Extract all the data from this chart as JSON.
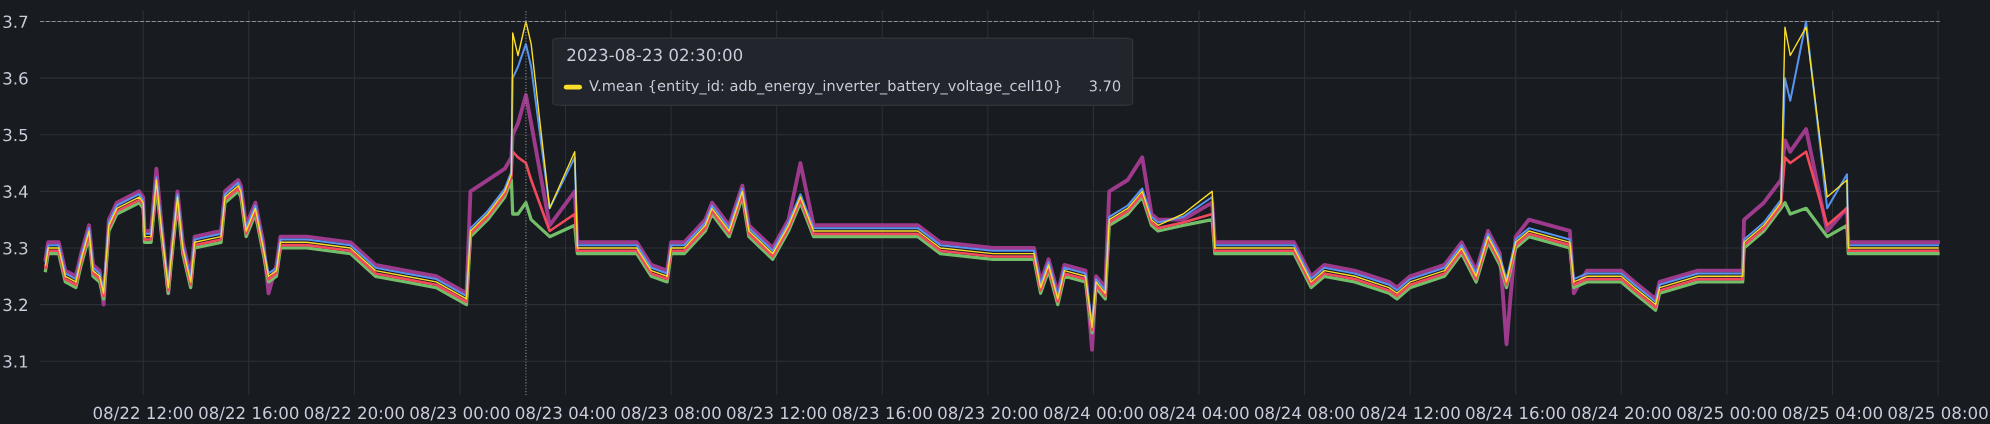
{
  "chart_data": {
    "type": "line",
    "x": [
      "2023-08-22T08:18",
      "2023-08-22T08:24",
      "2023-08-22T08:48",
      "2023-08-22T09:03",
      "2023-08-22T09:27",
      "2023-08-22T09:39",
      "2023-08-22T09:57",
      "2023-08-22T10:06",
      "2023-08-22T10:21",
      "2023-08-22T10:30",
      "2023-08-22T10:42",
      "2023-08-22T11:00",
      "2023-08-22T11:51",
      "2023-08-22T12:00",
      "2023-08-22T12:03",
      "2023-08-22T12:18",
      "2023-08-22T12:30",
      "2023-08-22T12:42",
      "2023-08-22T12:57",
      "2023-08-22T13:06",
      "2023-08-22T13:18",
      "2023-08-22T13:30",
      "2023-08-22T13:48",
      "2023-08-22T13:57",
      "2023-08-22T14:57",
      "2023-08-22T15:06",
      "2023-08-22T15:36",
      "2023-08-22T15:42",
      "2023-08-22T15:54",
      "2023-08-22T16:15",
      "2023-08-22T16:33",
      "2023-08-22T16:45",
      "2023-08-22T17:03",
      "2023-08-22T17:12",
      "2023-08-22T18:12",
      "2023-08-22T19:51",
      "2023-08-22T20:48",
      "2023-08-22T21:57",
      "2023-08-22T23:06",
      "2023-08-23T00:15",
      "2023-08-23T00:24",
      "2023-08-23T01:03",
      "2023-08-23T01:42",
      "2023-08-23T01:57",
      "2023-08-23T02:00",
      "2023-08-23T02:12",
      "2023-08-23T02:30",
      "2023-08-23T02:42",
      "2023-08-23T03:24",
      "2023-08-23T04:21",
      "2023-08-23T04:27",
      "2023-08-23T06:42",
      "2023-08-23T07:15",
      "2023-08-23T07:51",
      "2023-08-23T08:00",
      "2023-08-23T08:30",
      "2023-08-23T09:18",
      "2023-08-23T09:33",
      "2023-08-23T10:12",
      "2023-08-23T10:42",
      "2023-08-23T10:57",
      "2023-08-23T11:51",
      "2023-08-23T12:27",
      "2023-08-23T12:54",
      "2023-08-23T13:24",
      "2023-08-23T14:33",
      "2023-08-23T15:36",
      "2023-08-23T17:21",
      "2023-08-23T18:12",
      "2023-08-23T20:12",
      "2023-08-23T21:45",
      "2023-08-23T22:00",
      "2023-08-23T22:18",
      "2023-08-23T22:39",
      "2023-08-23T22:54",
      "2023-08-23T23:42",
      "2023-08-23T23:57",
      "2023-08-24T00:06",
      "2023-08-24T00:27",
      "2023-08-24T00:36",
      "2023-08-24T01:18",
      "2023-08-24T01:51",
      "2023-08-24T02:12",
      "2023-08-24T02:27",
      "2023-08-24T03:24",
      "2023-08-24T04:30",
      "2023-08-24T04:36",
      "2023-08-24T06:36",
      "2023-08-24T07:36",
      "2023-08-24T08:15",
      "2023-08-24T08:45",
      "2023-08-24T09:54",
      "2023-08-24T11:12",
      "2023-08-24T11:30",
      "2023-08-24T12:00",
      "2023-08-24T13:18",
      "2023-08-24T13:57",
      "2023-08-24T14:30",
      "2023-08-24T14:57",
      "2023-08-24T15:24",
      "2023-08-24T15:39",
      "2023-08-24T16:00",
      "2023-08-24T16:30",
      "2023-08-24T18:03",
      "2023-08-24T18:12",
      "2023-08-24T18:42",
      "2023-08-24T20:00",
      "2023-08-24T20:30",
      "2023-08-24T21:18",
      "2023-08-24T21:27",
      "2023-08-24T22:54",
      "2023-08-25T00:36",
      "2023-08-25T00:39",
      "2023-08-25T01:24",
      "2023-08-25T02:03",
      "2023-08-25T02:12",
      "2023-08-25T02:24",
      "2023-08-25T03:00",
      "2023-08-25T03:48",
      "2023-08-25T04:33",
      "2023-08-25T04:36",
      "2023-08-25T08:00"
    ],
    "series": [
      {
        "color": "#9e3a8c",
        "values": [
          3.28,
          3.31,
          3.31,
          3.26,
          3.25,
          3.29,
          3.34,
          3.27,
          3.26,
          3.2,
          3.35,
          3.38,
          3.4,
          3.39,
          3.33,
          3.33,
          3.44,
          3.34,
          3.22,
          3.31,
          3.4,
          3.31,
          3.25,
          3.32,
          3.33,
          3.4,
          3.42,
          3.41,
          3.34,
          3.38,
          3.31,
          3.22,
          3.27,
          3.32,
          3.32,
          3.31,
          3.27,
          3.26,
          3.25,
          3.22,
          3.4,
          3.42,
          3.44,
          3.46,
          3.5,
          3.52,
          3.57,
          3.52,
          3.34,
          3.4,
          3.31,
          3.31,
          3.27,
          3.26,
          3.31,
          3.31,
          3.35,
          3.38,
          3.34,
          3.41,
          3.34,
          3.3,
          3.35,
          3.45,
          3.34,
          3.34,
          3.34,
          3.34,
          3.31,
          3.3,
          3.3,
          3.24,
          3.28,
          3.22,
          3.27,
          3.26,
          3.12,
          3.25,
          3.23,
          3.4,
          3.42,
          3.46,
          3.36,
          3.35,
          3.35,
          3.38,
          3.31,
          3.31,
          3.31,
          3.25,
          3.27,
          3.26,
          3.24,
          3.23,
          3.25,
          3.27,
          3.31,
          3.26,
          3.33,
          3.29,
          3.13,
          3.32,
          3.35,
          3.33,
          3.22,
          3.26,
          3.26,
          3.24,
          3.21,
          3.24,
          3.26,
          3.26,
          3.35,
          3.38,
          3.42,
          3.49,
          3.47,
          3.51,
          3.33,
          3.37,
          3.31,
          3.31
        ]
      },
      {
        "color": "#73bf69",
        "values": [
          3.26,
          3.29,
          3.29,
          3.24,
          3.23,
          3.27,
          3.32,
          3.25,
          3.24,
          3.21,
          3.33,
          3.36,
          3.38,
          3.37,
          3.31,
          3.31,
          3.41,
          3.32,
          3.22,
          3.29,
          3.38,
          3.29,
          3.23,
          3.3,
          3.31,
          3.38,
          3.4,
          3.39,
          3.32,
          3.36,
          3.29,
          3.24,
          3.25,
          3.3,
          3.3,
          3.29,
          3.25,
          3.24,
          3.23,
          3.2,
          3.32,
          3.35,
          3.39,
          3.42,
          3.36,
          3.36,
          3.38,
          3.35,
          3.32,
          3.34,
          3.29,
          3.29,
          3.25,
          3.24,
          3.29,
          3.29,
          3.33,
          3.36,
          3.32,
          3.39,
          3.32,
          3.28,
          3.33,
          3.38,
          3.32,
          3.32,
          3.32,
          3.32,
          3.29,
          3.28,
          3.28,
          3.22,
          3.26,
          3.2,
          3.25,
          3.24,
          3.15,
          3.23,
          3.21,
          3.34,
          3.36,
          3.39,
          3.34,
          3.33,
          3.34,
          3.35,
          3.29,
          3.29,
          3.29,
          3.23,
          3.25,
          3.24,
          3.22,
          3.21,
          3.23,
          3.25,
          3.29,
          3.24,
          3.31,
          3.27,
          3.23,
          3.3,
          3.32,
          3.3,
          3.23,
          3.24,
          3.24,
          3.22,
          3.19,
          3.22,
          3.24,
          3.24,
          3.3,
          3.33,
          3.37,
          3.38,
          3.36,
          3.37,
          3.32,
          3.34,
          3.29,
          3.29
        ]
      },
      {
        "color": "#f2495c",
        "values": [
          3.265,
          3.295,
          3.295,
          3.245,
          3.235,
          3.275,
          3.325,
          3.255,
          3.245,
          3.215,
          3.335,
          3.365,
          3.385,
          3.375,
          3.315,
          3.315,
          3.415,
          3.325,
          3.225,
          3.295,
          3.385,
          3.295,
          3.235,
          3.305,
          3.315,
          3.385,
          3.405,
          3.395,
          3.325,
          3.365,
          3.295,
          3.245,
          3.255,
          3.305,
          3.305,
          3.295,
          3.255,
          3.245,
          3.235,
          3.205,
          3.325,
          3.355,
          3.395,
          3.425,
          3.47,
          3.46,
          3.45,
          3.42,
          3.33,
          3.36,
          3.295,
          3.295,
          3.255,
          3.245,
          3.295,
          3.295,
          3.335,
          3.365,
          3.325,
          3.395,
          3.325,
          3.285,
          3.335,
          3.385,
          3.325,
          3.325,
          3.325,
          3.325,
          3.295,
          3.285,
          3.285,
          3.225,
          3.265,
          3.205,
          3.255,
          3.245,
          3.155,
          3.235,
          3.215,
          3.345,
          3.365,
          3.395,
          3.345,
          3.335,
          3.345,
          3.36,
          3.295,
          3.295,
          3.295,
          3.235,
          3.255,
          3.245,
          3.225,
          3.215,
          3.235,
          3.255,
          3.295,
          3.245,
          3.315,
          3.275,
          3.235,
          3.305,
          3.325,
          3.305,
          3.235,
          3.245,
          3.245,
          3.225,
          3.195,
          3.225,
          3.245,
          3.245,
          3.305,
          3.335,
          3.375,
          3.46,
          3.45,
          3.47,
          3.34,
          3.37,
          3.295,
          3.295
        ]
      },
      {
        "color": "#5794f2",
        "values": [
          3.275,
          3.305,
          3.305,
          3.255,
          3.245,
          3.285,
          3.335,
          3.265,
          3.255,
          3.225,
          3.345,
          3.375,
          3.395,
          3.385,
          3.325,
          3.325,
          3.425,
          3.335,
          3.235,
          3.305,
          3.395,
          3.305,
          3.245,
          3.315,
          3.325,
          3.395,
          3.415,
          3.405,
          3.335,
          3.375,
          3.305,
          3.255,
          3.265,
          3.315,
          3.315,
          3.305,
          3.265,
          3.255,
          3.245,
          3.215,
          3.335,
          3.365,
          3.405,
          3.435,
          3.6,
          3.62,
          3.66,
          3.62,
          3.37,
          3.46,
          3.305,
          3.305,
          3.265,
          3.255,
          3.305,
          3.305,
          3.345,
          3.375,
          3.335,
          3.405,
          3.335,
          3.295,
          3.345,
          3.395,
          3.335,
          3.335,
          3.335,
          3.335,
          3.305,
          3.295,
          3.295,
          3.235,
          3.275,
          3.215,
          3.265,
          3.255,
          3.165,
          3.245,
          3.225,
          3.355,
          3.375,
          3.405,
          3.355,
          3.345,
          3.355,
          3.39,
          3.305,
          3.305,
          3.305,
          3.245,
          3.265,
          3.255,
          3.235,
          3.225,
          3.245,
          3.265,
          3.305,
          3.255,
          3.325,
          3.285,
          3.245,
          3.315,
          3.335,
          3.315,
          3.245,
          3.255,
          3.255,
          3.235,
          3.205,
          3.235,
          3.255,
          3.255,
          3.315,
          3.345,
          3.385,
          3.6,
          3.56,
          3.7,
          3.37,
          3.43,
          3.305,
          3.305
        ]
      },
      {
        "color": "#fade2a",
        "values": [
          3.27,
          3.3,
          3.3,
          3.25,
          3.24,
          3.28,
          3.33,
          3.26,
          3.25,
          3.22,
          3.34,
          3.37,
          3.39,
          3.38,
          3.32,
          3.32,
          3.42,
          3.33,
          3.23,
          3.3,
          3.39,
          3.3,
          3.24,
          3.31,
          3.32,
          3.39,
          3.41,
          3.4,
          3.33,
          3.37,
          3.3,
          3.25,
          3.26,
          3.31,
          3.31,
          3.3,
          3.26,
          3.25,
          3.24,
          3.21,
          3.33,
          3.36,
          3.4,
          3.43,
          3.68,
          3.64,
          3.7,
          3.66,
          3.37,
          3.47,
          3.3,
          3.3,
          3.26,
          3.25,
          3.3,
          3.3,
          3.34,
          3.37,
          3.33,
          3.4,
          3.33,
          3.29,
          3.34,
          3.39,
          3.33,
          3.33,
          3.33,
          3.33,
          3.3,
          3.29,
          3.29,
          3.23,
          3.27,
          3.21,
          3.26,
          3.25,
          3.16,
          3.24,
          3.22,
          3.35,
          3.37,
          3.4,
          3.35,
          3.34,
          3.36,
          3.4,
          3.3,
          3.3,
          3.3,
          3.24,
          3.26,
          3.25,
          3.23,
          3.22,
          3.24,
          3.26,
          3.3,
          3.25,
          3.32,
          3.28,
          3.24,
          3.31,
          3.33,
          3.31,
          3.24,
          3.25,
          3.25,
          3.23,
          3.2,
          3.23,
          3.25,
          3.25,
          3.31,
          3.34,
          3.38,
          3.69,
          3.64,
          3.69,
          3.39,
          3.42,
          3.3,
          3.3
        ]
      }
    ],
    "xlim": [
      "2023-08-22T08:05",
      "2023-08-25T08:05"
    ],
    "xticks": [
      {
        "value": "2023-08-22T12:00",
        "label": "08/22 12:00"
      },
      {
        "value": "2023-08-22T16:00",
        "label": "08/22 16:00"
      },
      {
        "value": "2023-08-22T20:00",
        "label": "08/22 20:00"
      },
      {
        "value": "2023-08-23T00:00",
        "label": "08/23 00:00"
      },
      {
        "value": "2023-08-23T04:00",
        "label": "08/23 04:00"
      },
      {
        "value": "2023-08-23T08:00",
        "label": "08/23 08:00"
      },
      {
        "value": "2023-08-23T12:00",
        "label": "08/23 12:00"
      },
      {
        "value": "2023-08-23T16:00",
        "label": "08/23 16:00"
      },
      {
        "value": "2023-08-23T20:00",
        "label": "08/23 20:00"
      },
      {
        "value": "2023-08-24T00:00",
        "label": "08/24 00:00"
      },
      {
        "value": "2023-08-24T04:00",
        "label": "08/24 04:00"
      },
      {
        "value": "2023-08-24T08:00",
        "label": "08/24 08:00"
      },
      {
        "value": "2023-08-24T12:00",
        "label": "08/24 12:00"
      },
      {
        "value": "2023-08-24T16:00",
        "label": "08/24 16:00"
      },
      {
        "value": "2023-08-24T20:00",
        "label": "08/24 20:00"
      },
      {
        "value": "2023-08-25T00:00",
        "label": "08/25 00:00"
      },
      {
        "value": "2023-08-25T04:00",
        "label": "08/25 04:00"
      },
      {
        "value": "2023-08-25T08:00",
        "label": "08/25 08:00"
      }
    ],
    "ylim": [
      3.04,
      3.72
    ],
    "yticks": [
      3.1,
      3.2,
      3.3,
      3.4,
      3.5,
      3.6,
      3.7
    ],
    "grid": true,
    "ref_lines": [
      {
        "axis": "x",
        "value": "2023-08-23T02:30",
        "color": "#8e8e9a",
        "line_style": "dotted"
      },
      {
        "axis": "y",
        "value": 3.7,
        "color": "#8e8e9a",
        "line_style": "dashed"
      }
    ],
    "annotations": [
      "2023-08-23 02:30:00",
      "V.mean {entity_id: adb_energy_inverter_battery_voltage_cell10}",
      "3.70"
    ]
  }
}
